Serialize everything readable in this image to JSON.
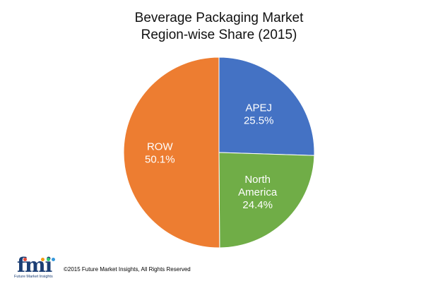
{
  "chart_data": {
    "type": "pie",
    "title": [
      "Beverage Packaging Market",
      "Region-wise Share (2015)"
    ],
    "slices": [
      {
        "label": [
          "APEJ"
        ],
        "value": 25.5,
        "value_text": "25.5%",
        "color": "#4472C4"
      },
      {
        "label": [
          "North",
          "America"
        ],
        "value": 24.4,
        "value_text": "24.4%",
        "color": "#70AD47"
      },
      {
        "label": [
          "ROW"
        ],
        "value": 50.1,
        "value_text": "50.1%",
        "color": "#ED7D31"
      }
    ]
  },
  "footer": {
    "logo_text": "fmi",
    "logo_subtext": "Future Market Insights",
    "copyright": "©2015 Future Market Insights, All Rights Reserved"
  },
  "colors": {
    "logo_blue": "#1B3E74",
    "logo_dots": [
      "#E74C3C",
      "#F39C12",
      "#2ECC71",
      "#3498DB"
    ]
  }
}
